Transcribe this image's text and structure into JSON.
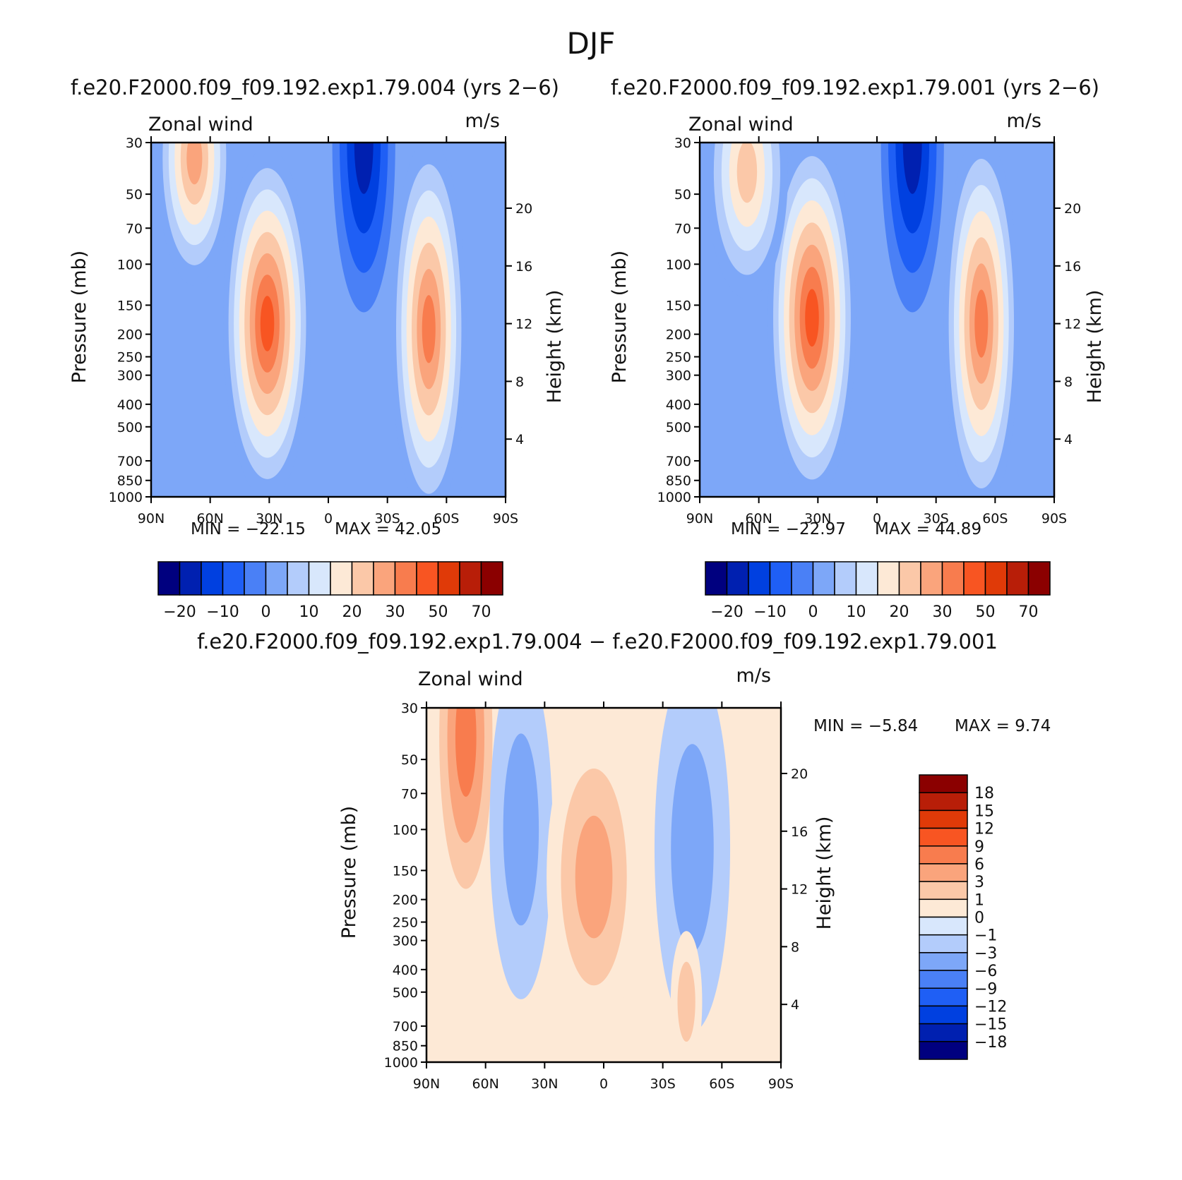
{
  "figure": {
    "title": "DJF",
    "colors": {
      "full": [
        "#00007f",
        "#0020b0",
        "#0040e0",
        "#1f5ff5",
        "#4a80f6",
        "#7da7f8",
        "#b3ccfb",
        "#d8e7fc",
        "#fde9d6",
        "#fbc8a8",
        "#faa47c",
        "#f87c4e",
        "#f85522",
        "#e03a08",
        "#b81e08",
        "#8b0000"
      ],
      "diff": [
        "#00007f",
        "#0020b0",
        "#0040e0",
        "#1f5ff5",
        "#4a80f6",
        "#7da7f8",
        "#b3ccfb",
        "#d8e7fc",
        "#fde9d6",
        "#fbc8a8",
        "#faa47c",
        "#f87c4e",
        "#f85522",
        "#e03a08",
        "#b81e08",
        "#8b0000"
      ]
    }
  },
  "chart_data": [
    {
      "type": "heatmap",
      "id": "panel-a",
      "title": "f.e20.F2000.f09_f09.192.exp1.79.004 (yrs 2−6)",
      "corner_left": "Zonal wind",
      "corner_right": "m/s",
      "xlabel": "",
      "ylabel": "Pressure (mb)",
      "ylabel_right": "Height (km)",
      "x_ticks": [
        "90N",
        "60N",
        "30N",
        "0",
        "30S",
        "60S",
        "90S"
      ],
      "x_range": [
        90,
        -90
      ],
      "y_ticks": [
        30,
        50,
        70,
        100,
        150,
        200,
        250,
        300,
        400,
        500,
        700,
        850,
        1000
      ],
      "y_range": [
        30,
        1000
      ],
      "right_ticks": [
        20,
        16,
        12,
        8,
        4
      ],
      "min_label": "MIN = −22.15",
      "max_label": "MAX = 42.05",
      "min": -22.15,
      "max": 42.05,
      "colorbar_ticks": [
        "−20",
        "−10",
        "0",
        "10",
        "20",
        "30",
        "50",
        "70"
      ],
      "jets": [
        {
          "lat": 31,
          "p": 180,
          "speed": 42,
          "lat_width": 14,
          "p_width": 1.25
        },
        {
          "lat": -51,
          "p": 190,
          "speed": 36,
          "lat_width": 12,
          "p_width": 1.35
        },
        {
          "lat": 68,
          "p": 35,
          "speed": 30,
          "lat_width": 12,
          "p_width": 0.9
        },
        {
          "lat": -18,
          "p": 30,
          "speed": -22,
          "lat_width": 10,
          "p_width": 1.2
        }
      ]
    },
    {
      "type": "heatmap",
      "id": "panel-b",
      "title": "f.e20.F2000.f09_f09.192.exp1.79.001 (yrs 2−6)",
      "corner_left": "Zonal wind",
      "corner_right": "m/s",
      "xlabel": "",
      "ylabel": "Pressure (mb)",
      "ylabel_right": "Height (km)",
      "x_ticks": [
        "90N",
        "60N",
        "30N",
        "0",
        "30S",
        "60S",
        "90S"
      ],
      "x_range": [
        90,
        -90
      ],
      "y_ticks": [
        30,
        50,
        70,
        100,
        150,
        200,
        250,
        300,
        400,
        500,
        700,
        850,
        1000
      ],
      "y_range": [
        30,
        1000
      ],
      "right_ticks": [
        20,
        16,
        12,
        8,
        4
      ],
      "min_label": "MIN = −22.97",
      "max_label": "MAX = 44.89",
      "min": -22.97,
      "max": 44.89,
      "colorbar_ticks": [
        "−20",
        "−10",
        "0",
        "10",
        "20",
        "30",
        "50",
        "70"
      ],
      "jets": [
        {
          "lat": 33,
          "p": 170,
          "speed": 45,
          "lat_width": 14,
          "p_width": 1.3
        },
        {
          "lat": -53,
          "p": 180,
          "speed": 40,
          "lat_width": 12,
          "p_width": 1.35
        },
        {
          "lat": 66,
          "p": 40,
          "speed": 25,
          "lat_width": 13,
          "p_width": 0.9
        },
        {
          "lat": -18,
          "p": 30,
          "speed": -23,
          "lat_width": 10,
          "p_width": 1.2
        }
      ]
    },
    {
      "type": "heatmap",
      "id": "panel-diff",
      "title": "f.e20.F2000.f09_f09.192.exp1.79.004 − f.e20.F2000.f09_f09.192.exp1.79.001",
      "corner_left": "Zonal wind",
      "corner_right": "m/s",
      "xlabel": "",
      "ylabel": "Pressure (mb)",
      "ylabel_right": "Height (km)",
      "x_ticks": [
        "90N",
        "60N",
        "30N",
        "0",
        "30S",
        "60S",
        "90S"
      ],
      "x_range": [
        90,
        -90
      ],
      "y_ticks": [
        30,
        50,
        70,
        100,
        150,
        200,
        250,
        300,
        400,
        500,
        700,
        850,
        1000
      ],
      "y_range": [
        30,
        1000
      ],
      "right_ticks": [
        20,
        16,
        12,
        8,
        4
      ],
      "min_label": "MIN = −5.84",
      "max_label": "MAX = 9.74",
      "min": -5.84,
      "max": 9.74,
      "colorbar_ticks": [
        "18",
        "15",
        "12",
        "9",
        "6",
        "3",
        "1",
        "0",
        "−1",
        "−3",
        "−6",
        "−9",
        "−12",
        "−15",
        "−18"
      ],
      "jets": [
        {
          "lat": 70,
          "p": 40,
          "speed": 9,
          "lat_width": 11,
          "p_width": 1.4
        },
        {
          "lat": 42,
          "p": 100,
          "speed": -5,
          "lat_width": 10,
          "p_width": 1.2
        },
        {
          "lat": 5,
          "p": 160,
          "speed": 5,
          "lat_width": 15,
          "p_width": 1.1
        },
        {
          "lat": -45,
          "p": 120,
          "speed": -4.5,
          "lat_width": 12,
          "p_width": 1.3
        },
        {
          "lat": -42,
          "p": 550,
          "speed": 3,
          "lat_width": 5,
          "p_width": 0.5
        }
      ]
    }
  ]
}
